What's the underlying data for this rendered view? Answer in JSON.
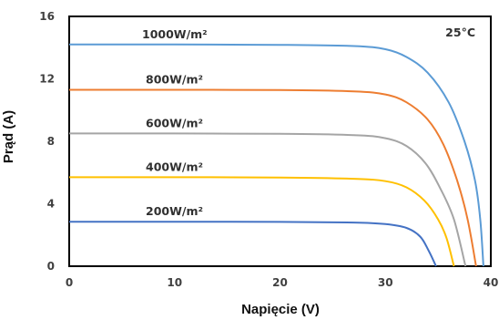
{
  "chart_data": {
    "type": "line",
    "xlabel": "Napięcie (V)",
    "ylabel": "Prąd (A)",
    "annotation": "25°C",
    "xlim": [
      0,
      40
    ],
    "ylim": [
      0,
      16
    ],
    "x_ticks": [
      "0",
      "10",
      "20",
      "30",
      "40"
    ],
    "y_ticks": [
      "0",
      "4",
      "8",
      "12",
      "16"
    ],
    "grid": false,
    "series": [
      {
        "name": "1000W/m²",
        "color": "#5B9BD5",
        "isc": 14.2,
        "knee_v": 32.5,
        "voc": 39.3,
        "points": [
          [
            0,
            14.2
          ],
          [
            10,
            14.2
          ],
          [
            20,
            14.18
          ],
          [
            27,
            14.1
          ],
          [
            30,
            13.9
          ],
          [
            32,
            13.4
          ],
          [
            34,
            12.4
          ],
          [
            36,
            10.5
          ],
          [
            37.5,
            8.0
          ],
          [
            38.5,
            5.5
          ],
          [
            39.0,
            3.0
          ],
          [
            39.3,
            0
          ]
        ]
      },
      {
        "name": "800W/m²",
        "color": "#ED7D31",
        "isc": 11.3,
        "knee_v": 32,
        "voc": 38.6,
        "points": [
          [
            0,
            11.3
          ],
          [
            10,
            11.3
          ],
          [
            20,
            11.28
          ],
          [
            27,
            11.2
          ],
          [
            30,
            11.0
          ],
          [
            32,
            10.5
          ],
          [
            34,
            9.4
          ],
          [
            35.5,
            7.8
          ],
          [
            36.8,
            5.5
          ],
          [
            37.8,
            3.0
          ],
          [
            38.6,
            0
          ]
        ]
      },
      {
        "name": "600W/m²",
        "color": "#A5A5A5",
        "isc": 8.5,
        "knee_v": 31.5,
        "voc": 37.6,
        "points": [
          [
            0,
            8.5
          ],
          [
            10,
            8.5
          ],
          [
            20,
            8.48
          ],
          [
            27,
            8.4
          ],
          [
            30,
            8.2
          ],
          [
            32,
            7.7
          ],
          [
            33.8,
            6.6
          ],
          [
            35.2,
            5.0
          ],
          [
            36.5,
            3.0
          ],
          [
            37.6,
            0
          ]
        ]
      },
      {
        "name": "400W/m²",
        "color": "#FFC000",
        "isc": 5.7,
        "knee_v": 31,
        "voc": 36.5,
        "points": [
          [
            0,
            5.7
          ],
          [
            10,
            5.7
          ],
          [
            20,
            5.68
          ],
          [
            27,
            5.6
          ],
          [
            30,
            5.45
          ],
          [
            32,
            5.05
          ],
          [
            33.7,
            4.2
          ],
          [
            35.0,
            3.0
          ],
          [
            35.8,
            1.8
          ],
          [
            36.5,
            0
          ]
        ]
      },
      {
        "name": "200W/m²",
        "color": "#4472C4",
        "isc": 2.85,
        "knee_v": 30,
        "voc": 34.8,
        "points": [
          [
            0,
            2.85
          ],
          [
            10,
            2.85
          ],
          [
            20,
            2.84
          ],
          [
            27,
            2.8
          ],
          [
            30,
            2.7
          ],
          [
            32,
            2.45
          ],
          [
            33.3,
            1.9
          ],
          [
            34.1,
            1.0
          ],
          [
            34.8,
            0
          ]
        ]
      }
    ]
  }
}
